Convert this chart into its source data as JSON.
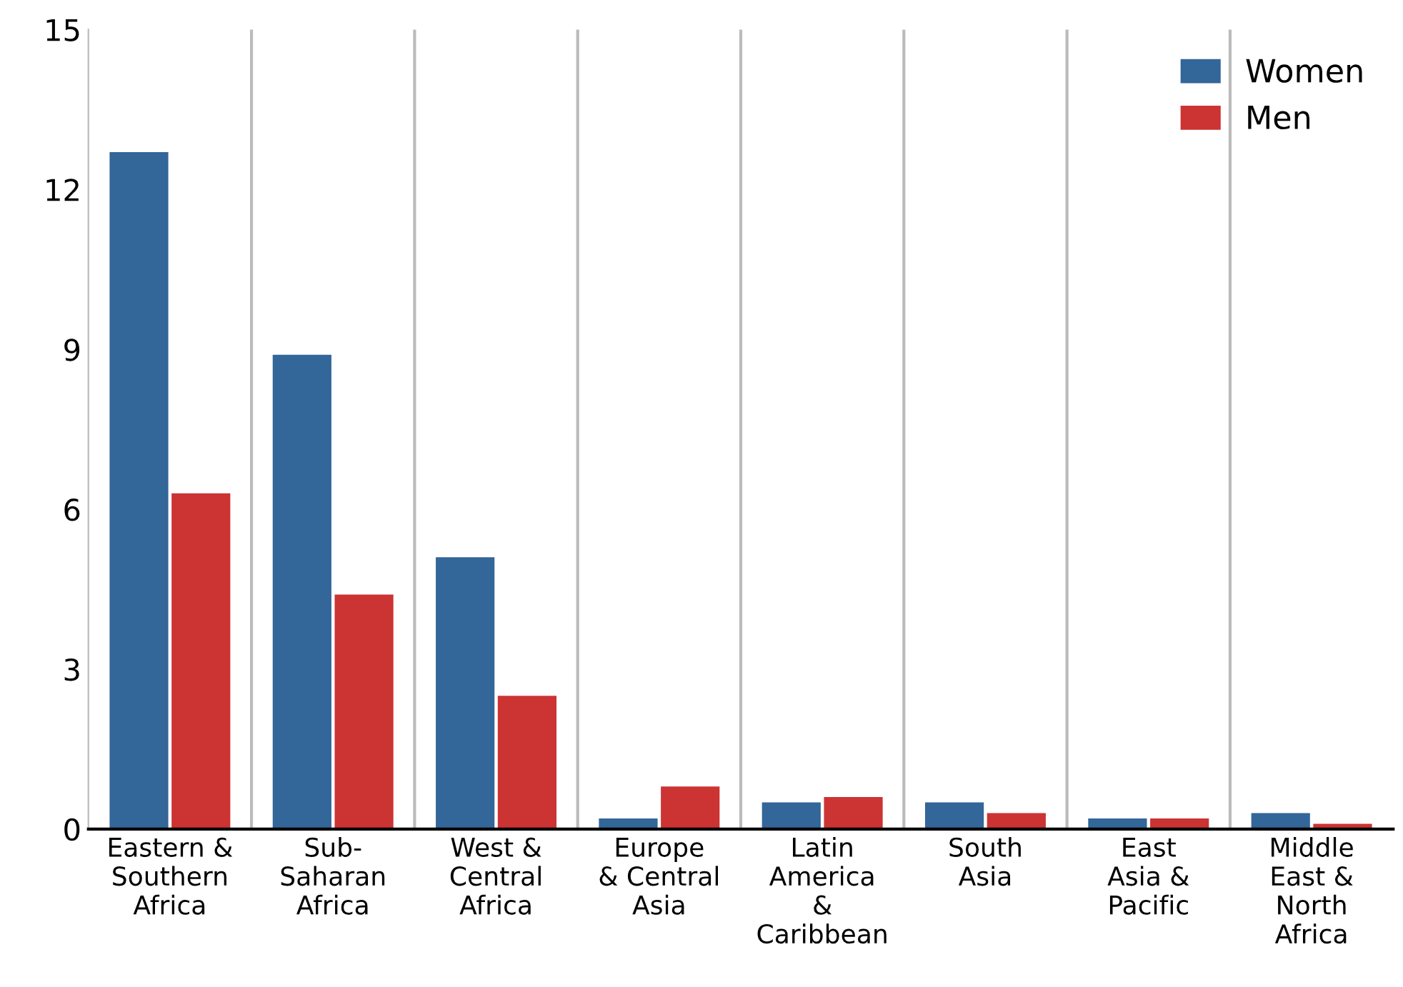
{
  "chart_data": {
    "type": "bar",
    "categories": [
      "Eastern &\nSouthern\nAfrica",
      "Sub-\nSaharan\nAfrica",
      "West &\nCentral\nAfrica",
      "Europe\n& Central\nAsia",
      "Latin\nAmerica\n&\nCaribbean",
      "South\nAsia",
      "East\nAsia &\nPacific",
      "Middle\nEast &\nNorth\nAfrica"
    ],
    "series": [
      {
        "name": "Women",
        "color": "#336699",
        "values": [
          12.7,
          8.9,
          5.1,
          0.2,
          0.5,
          0.5,
          0.2,
          0.3
        ]
      },
      {
        "name": "Men",
        "color": "#cc3333",
        "values": [
          6.3,
          4.4,
          2.5,
          0.8,
          0.6,
          0.3,
          0.2,
          0.1
        ]
      }
    ],
    "ylim": [
      0,
      15
    ],
    "yticks": [
      0,
      3,
      6,
      9,
      12,
      15
    ],
    "grid": "x",
    "legend": "top right"
  }
}
